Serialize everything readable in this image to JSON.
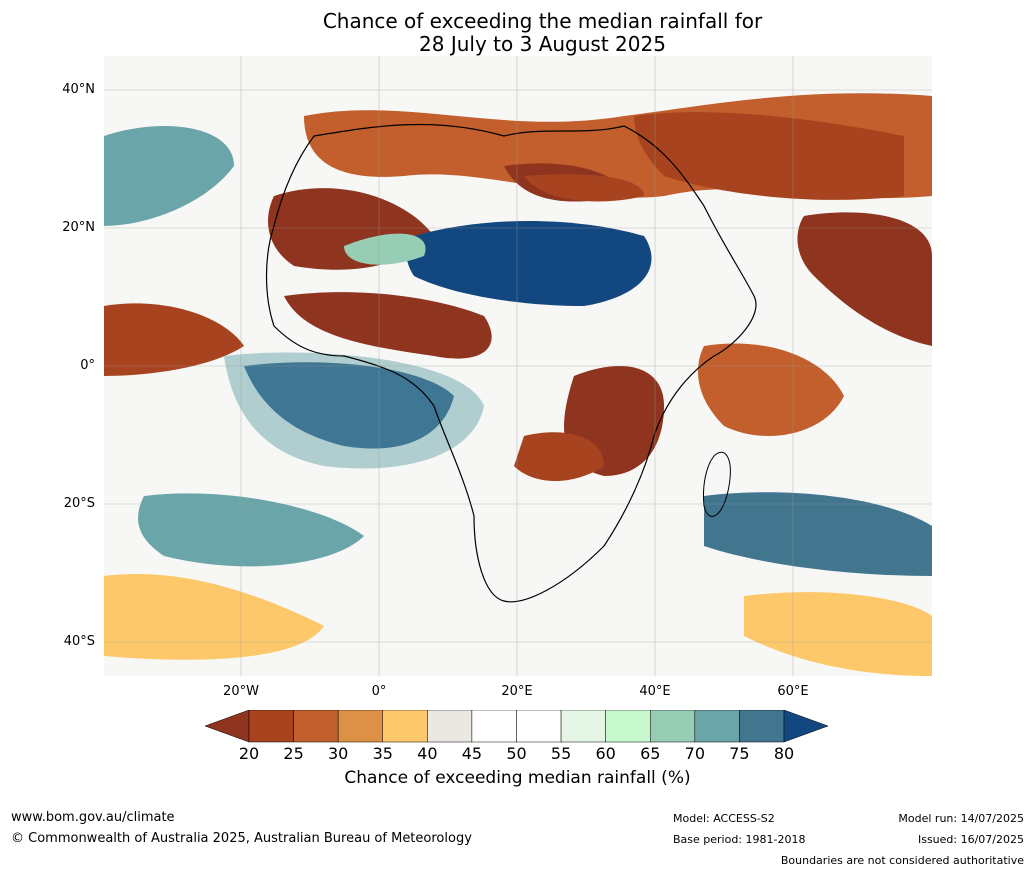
{
  "title": {
    "line1": "Chance of exceeding the median rainfall for",
    "line2": "28 July to 3 August 2025"
  },
  "map": {
    "region": "Africa",
    "lat_labels": [
      "40°N",
      "20°N",
      "0°",
      "20°S",
      "40°S"
    ],
    "lon_labels": [
      "20°W",
      "0°",
      "20°E",
      "40°E",
      "60°E"
    ]
  },
  "colorbar": {
    "ticks": [
      "20",
      "25",
      "30",
      "35",
      "40",
      "45",
      "50",
      "55",
      "60",
      "65",
      "70",
      "75",
      "80"
    ],
    "colors": [
      "#8f341f",
      "#a8431f",
      "#c25f2c",
      "#dc9147",
      "#fdc86a",
      "#ebe7e2",
      "#ffffff",
      "#ffffff",
      "#e5f6e6",
      "#c8f8cd",
      "#98cdb5",
      "#6aa6a9",
      "#42768f",
      "#13477f"
    ],
    "label": "Chance of exceeding median rainfall (%)"
  },
  "footer": {
    "url": "www.bom.gov.au/climate",
    "copyright": "© Commonwealth of Australia 2025, Australian Bureau of Meteorology",
    "model": "Model: ACCESS-S2",
    "base_period": "Base period: 1981-2018",
    "model_run": "Model run: 14/07/2025",
    "issued": "Issued: 16/07/2025",
    "disclaimer": "Boundaries are not considered authoritative"
  }
}
